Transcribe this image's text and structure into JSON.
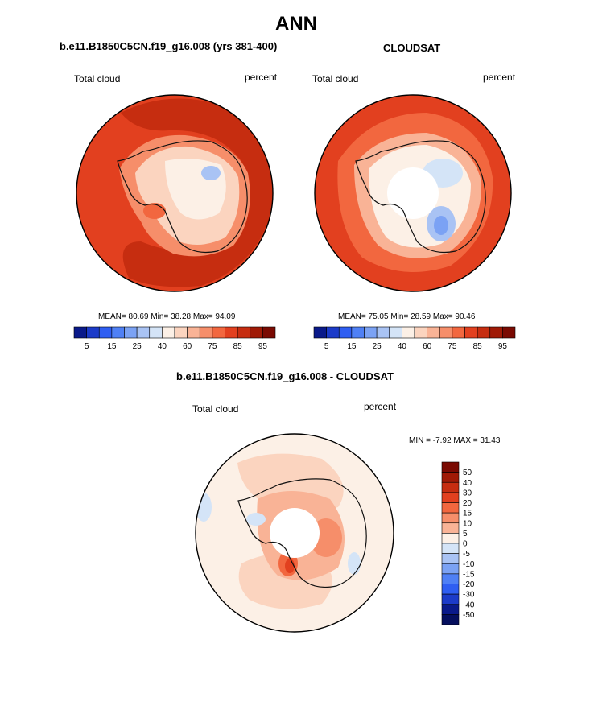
{
  "figure": {
    "main_title": "ANN",
    "panel_titles": {
      "model": "b.e11.B1850C5CN.f19_g16.008 (yrs 381-400)",
      "obs": "CLOUDSAT",
      "diff": "b.e11.B1850C5CN.f19_g16.008 - CLOUDSAT"
    }
  },
  "chart_data": [
    {
      "type": "heatmap",
      "projection": "south-polar-stereographic",
      "panel": "model",
      "title": "b.e11.B1850C5CN.f19_g16.008 (yrs 381-400)",
      "left_label": "Total cloud",
      "right_label": "percent",
      "stats": {
        "mean_label": "MEAN=",
        "mean": "80.69",
        "min_label": "Min=",
        "min": "38.28",
        "max_label": "Max=",
        "max": "94.09"
      },
      "colorbar": {
        "orientation": "horizontal",
        "levels": [
          5,
          10,
          15,
          20,
          25,
          30,
          40,
          50,
          60,
          70,
          75,
          80,
          85,
          90,
          95
        ],
        "tick_labels": [
          "5",
          "15",
          "25",
          "40",
          "60",
          "75",
          "85",
          "95"
        ],
        "colors": [
          "#0a1a8a",
          "#1c3bc9",
          "#2f5ef2",
          "#4f80f5",
          "#7ba2f4",
          "#a9c3f4",
          "#d4e4f7",
          "#fcf0e6",
          "#fbd4bf",
          "#f9b396",
          "#f68e6a",
          "#f2673f",
          "#e2401f",
          "#c62d10",
          "#a01a06",
          "#7a0a02"
        ]
      },
      "description_regions": {
        "open_ocean": 90,
        "outer_ring": 93,
        "coast": 75,
        "interior": 55,
        "east_plateau_minimum": 40,
        "ross_low": 60
      }
    },
    {
      "type": "heatmap",
      "projection": "south-polar-stereographic",
      "panel": "obs",
      "title": "CLOUDSAT",
      "left_label": "Total cloud",
      "right_label": "percent",
      "stats": {
        "mean_label": "MEAN=",
        "mean": "75.05",
        "min_label": "Min=",
        "min": "28.59",
        "max_label": "Max=",
        "max": "90.46"
      },
      "colorbar": {
        "orientation": "horizontal",
        "levels": [
          5,
          10,
          15,
          20,
          25,
          30,
          40,
          50,
          60,
          70,
          75,
          80,
          85,
          90,
          95
        ],
        "tick_labels": [
          "5",
          "15",
          "25",
          "40",
          "60",
          "75",
          "85",
          "95"
        ],
        "colors": [
          "#0a1a8a",
          "#1c3bc9",
          "#2f5ef2",
          "#4f80f5",
          "#7ba2f4",
          "#a9c3f4",
          "#d4e4f7",
          "#fcf0e6",
          "#fbd4bf",
          "#f9b396",
          "#f68e6a",
          "#f2673f",
          "#e2401f",
          "#c62d10",
          "#a01a06",
          "#7a0a02"
        ]
      },
      "description_regions": {
        "open_ocean": 88,
        "coast": 70,
        "interior": 45,
        "east_plateau_minimum": 30,
        "pole_hole": "missing"
      }
    },
    {
      "type": "heatmap",
      "projection": "south-polar-stereographic",
      "panel": "diff",
      "title": "b.e11.B1850C5CN.f19_g16.008 - CLOUDSAT",
      "left_label": "Total cloud",
      "right_label": "percent",
      "stats": {
        "min_label": "MIN =",
        "min": "-7.92",
        "max_label": "MAX =",
        "max": "31.43"
      },
      "colorbar": {
        "orientation": "vertical",
        "levels": [
          -50,
          -40,
          -30,
          -20,
          -15,
          -10,
          -5,
          0,
          5,
          10,
          15,
          20,
          30,
          40,
          50
        ],
        "tick_labels": [
          "50",
          "40",
          "30",
          "20",
          "15",
          "10",
          "5",
          "0",
          "-5",
          "-10",
          "-15",
          "-20",
          "-30",
          "-40",
          "-50"
        ],
        "colors_top_to_bottom": [
          "#7a0a02",
          "#a01a06",
          "#c62d10",
          "#e2401f",
          "#f2673f",
          "#f68e6a",
          "#f9b396",
          "#fcf0e6",
          "#d4e4f7",
          "#a9c3f4",
          "#7ba2f4",
          "#4f80f5",
          "#2f5ef2",
          "#1c3bc9",
          "#0a1a8a",
          "#050f5e"
        ]
      },
      "description_regions": {
        "ocean": 4,
        "coast": 12,
        "interior": 20,
        "local_max": 31,
        "local_min": -7,
        "pole_hole": "missing"
      }
    }
  ]
}
